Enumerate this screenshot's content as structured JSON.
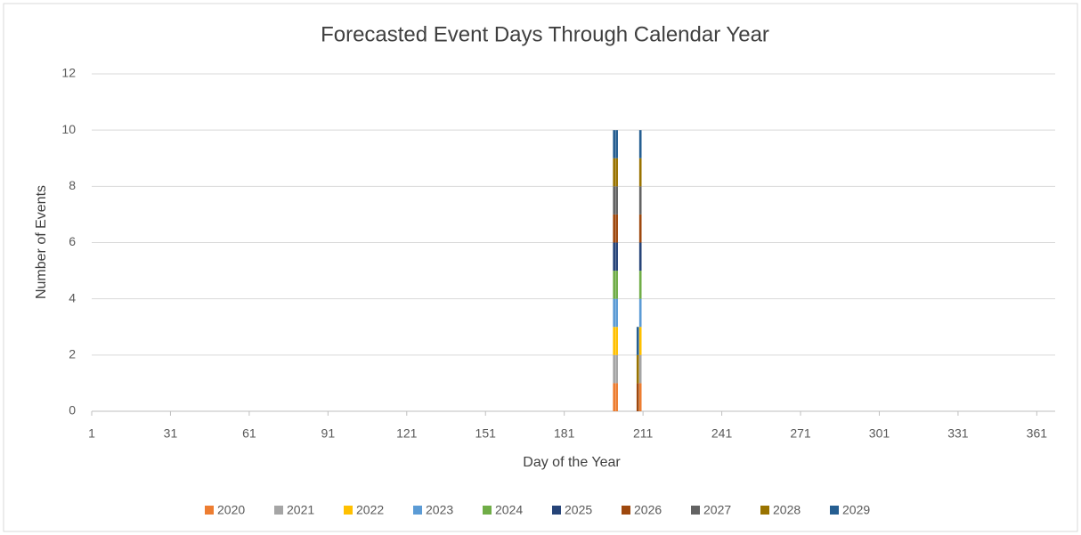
{
  "chart_data": {
    "type": "bar",
    "stacked": true,
    "title": "Forecasted Event Days Through Calendar Year",
    "xlabel": "Day of the Year",
    "ylabel": "Number of Events",
    "x": [
      200,
      201,
      209,
      210
    ],
    "series": [
      {
        "name": "2020",
        "color": "#ed7d31",
        "values": [
          1,
          1,
          0,
          1
        ]
      },
      {
        "name": "2021",
        "color": "#a5a5a5",
        "values": [
          1,
          1,
          0,
          1
        ]
      },
      {
        "name": "2022",
        "color": "#ffc000",
        "values": [
          1,
          1,
          0,
          1
        ]
      },
      {
        "name": "2023",
        "color": "#5b9bd5",
        "values": [
          1,
          1,
          0,
          1
        ]
      },
      {
        "name": "2024",
        "color": "#70ad47",
        "values": [
          1,
          1,
          0,
          1
        ]
      },
      {
        "name": "2025",
        "color": "#264478",
        "values": [
          1,
          1,
          0,
          1
        ]
      },
      {
        "name": "2026",
        "color": "#9e480e",
        "values": [
          1,
          1,
          1,
          1
        ]
      },
      {
        "name": "2027",
        "color": "#636363",
        "values": [
          1,
          1,
          0,
          1
        ]
      },
      {
        "name": "2028",
        "color": "#997300",
        "values": [
          1,
          1,
          1,
          1
        ]
      },
      {
        "name": "2029",
        "color": "#255e91",
        "values": [
          1,
          1,
          1,
          1
        ]
      }
    ],
    "xlim": [
      1,
      368
    ],
    "xticks": [
      1,
      31,
      61,
      91,
      121,
      151,
      181,
      211,
      241,
      271,
      301,
      331,
      361
    ],
    "ylim": [
      0,
      12
    ],
    "yticks": [
      0,
      2,
      4,
      6,
      8,
      10,
      12
    ],
    "grid": true,
    "legend": "bottom"
  }
}
